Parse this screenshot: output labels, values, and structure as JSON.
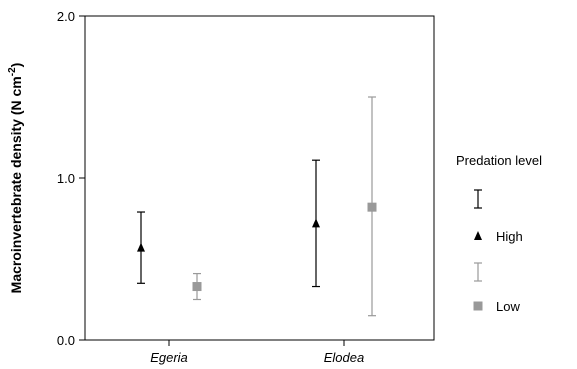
{
  "chart_data": {
    "type": "scatter",
    "title": "",
    "xlabel": "",
    "ylabel": "Macroinvertebrate density (N cm",
    "ylabel_sup": "-2",
    "ylabel_end": ")",
    "categories": [
      "Egeria",
      "Elodea"
    ],
    "ylim": [
      0.0,
      2.0
    ],
    "yticks": [
      "0.0",
      "1.0",
      "2.0"
    ],
    "ytick_values": [
      0.0,
      1.0,
      2.0
    ],
    "grid": false,
    "legend_title": "Predation level",
    "legend_position": "right",
    "series": [
      {
        "name": "High",
        "color": "#000000",
        "marker": "triangle",
        "values": [
          0.57,
          0.72
        ],
        "err_low": [
          0.35,
          0.33
        ],
        "err_high": [
          0.79,
          1.11
        ]
      },
      {
        "name": "Low",
        "color": "#999999",
        "marker": "square",
        "values": [
          0.33,
          0.82
        ],
        "err_low": [
          0.25,
          0.15
        ],
        "err_high": [
          0.41,
          1.5
        ]
      }
    ]
  }
}
